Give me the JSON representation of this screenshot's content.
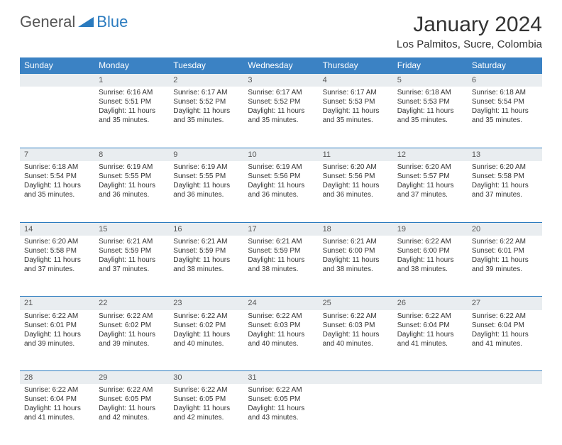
{
  "logo": {
    "text1": "General",
    "text2": "Blue",
    "color1": "#555555",
    "color2": "#2b7bbf"
  },
  "title": "January 2024",
  "location": "Los Palmitos, Sucre, Colombia",
  "weekdays": [
    "Sunday",
    "Monday",
    "Tuesday",
    "Wednesday",
    "Thursday",
    "Friday",
    "Saturday"
  ],
  "header_bg": "#3b82c4",
  "daynum_bg": "#e9edf0",
  "border_color": "#2b7bbf",
  "weeks": [
    {
      "nums": [
        "",
        "1",
        "2",
        "3",
        "4",
        "5",
        "6"
      ],
      "cells": [
        null,
        {
          "sr": "Sunrise: 6:16 AM",
          "ss": "Sunset: 5:51 PM",
          "d1": "Daylight: 11 hours",
          "d2": "and 35 minutes."
        },
        {
          "sr": "Sunrise: 6:17 AM",
          "ss": "Sunset: 5:52 PM",
          "d1": "Daylight: 11 hours",
          "d2": "and 35 minutes."
        },
        {
          "sr": "Sunrise: 6:17 AM",
          "ss": "Sunset: 5:52 PM",
          "d1": "Daylight: 11 hours",
          "d2": "and 35 minutes."
        },
        {
          "sr": "Sunrise: 6:17 AM",
          "ss": "Sunset: 5:53 PM",
          "d1": "Daylight: 11 hours",
          "d2": "and 35 minutes."
        },
        {
          "sr": "Sunrise: 6:18 AM",
          "ss": "Sunset: 5:53 PM",
          "d1": "Daylight: 11 hours",
          "d2": "and 35 minutes."
        },
        {
          "sr": "Sunrise: 6:18 AM",
          "ss": "Sunset: 5:54 PM",
          "d1": "Daylight: 11 hours",
          "d2": "and 35 minutes."
        }
      ]
    },
    {
      "nums": [
        "7",
        "8",
        "9",
        "10",
        "11",
        "12",
        "13"
      ],
      "cells": [
        {
          "sr": "Sunrise: 6:18 AM",
          "ss": "Sunset: 5:54 PM",
          "d1": "Daylight: 11 hours",
          "d2": "and 35 minutes."
        },
        {
          "sr": "Sunrise: 6:19 AM",
          "ss": "Sunset: 5:55 PM",
          "d1": "Daylight: 11 hours",
          "d2": "and 36 minutes."
        },
        {
          "sr": "Sunrise: 6:19 AM",
          "ss": "Sunset: 5:55 PM",
          "d1": "Daylight: 11 hours",
          "d2": "and 36 minutes."
        },
        {
          "sr": "Sunrise: 6:19 AM",
          "ss": "Sunset: 5:56 PM",
          "d1": "Daylight: 11 hours",
          "d2": "and 36 minutes."
        },
        {
          "sr": "Sunrise: 6:20 AM",
          "ss": "Sunset: 5:56 PM",
          "d1": "Daylight: 11 hours",
          "d2": "and 36 minutes."
        },
        {
          "sr": "Sunrise: 6:20 AM",
          "ss": "Sunset: 5:57 PM",
          "d1": "Daylight: 11 hours",
          "d2": "and 37 minutes."
        },
        {
          "sr": "Sunrise: 6:20 AM",
          "ss": "Sunset: 5:58 PM",
          "d1": "Daylight: 11 hours",
          "d2": "and 37 minutes."
        }
      ]
    },
    {
      "nums": [
        "14",
        "15",
        "16",
        "17",
        "18",
        "19",
        "20"
      ],
      "cells": [
        {
          "sr": "Sunrise: 6:20 AM",
          "ss": "Sunset: 5:58 PM",
          "d1": "Daylight: 11 hours",
          "d2": "and 37 minutes."
        },
        {
          "sr": "Sunrise: 6:21 AM",
          "ss": "Sunset: 5:59 PM",
          "d1": "Daylight: 11 hours",
          "d2": "and 37 minutes."
        },
        {
          "sr": "Sunrise: 6:21 AM",
          "ss": "Sunset: 5:59 PM",
          "d1": "Daylight: 11 hours",
          "d2": "and 38 minutes."
        },
        {
          "sr": "Sunrise: 6:21 AM",
          "ss": "Sunset: 5:59 PM",
          "d1": "Daylight: 11 hours",
          "d2": "and 38 minutes."
        },
        {
          "sr": "Sunrise: 6:21 AM",
          "ss": "Sunset: 6:00 PM",
          "d1": "Daylight: 11 hours",
          "d2": "and 38 minutes."
        },
        {
          "sr": "Sunrise: 6:22 AM",
          "ss": "Sunset: 6:00 PM",
          "d1": "Daylight: 11 hours",
          "d2": "and 38 minutes."
        },
        {
          "sr": "Sunrise: 6:22 AM",
          "ss": "Sunset: 6:01 PM",
          "d1": "Daylight: 11 hours",
          "d2": "and 39 minutes."
        }
      ]
    },
    {
      "nums": [
        "21",
        "22",
        "23",
        "24",
        "25",
        "26",
        "27"
      ],
      "cells": [
        {
          "sr": "Sunrise: 6:22 AM",
          "ss": "Sunset: 6:01 PM",
          "d1": "Daylight: 11 hours",
          "d2": "and 39 minutes."
        },
        {
          "sr": "Sunrise: 6:22 AM",
          "ss": "Sunset: 6:02 PM",
          "d1": "Daylight: 11 hours",
          "d2": "and 39 minutes."
        },
        {
          "sr": "Sunrise: 6:22 AM",
          "ss": "Sunset: 6:02 PM",
          "d1": "Daylight: 11 hours",
          "d2": "and 40 minutes."
        },
        {
          "sr": "Sunrise: 6:22 AM",
          "ss": "Sunset: 6:03 PM",
          "d1": "Daylight: 11 hours",
          "d2": "and 40 minutes."
        },
        {
          "sr": "Sunrise: 6:22 AM",
          "ss": "Sunset: 6:03 PM",
          "d1": "Daylight: 11 hours",
          "d2": "and 40 minutes."
        },
        {
          "sr": "Sunrise: 6:22 AM",
          "ss": "Sunset: 6:04 PM",
          "d1": "Daylight: 11 hours",
          "d2": "and 41 minutes."
        },
        {
          "sr": "Sunrise: 6:22 AM",
          "ss": "Sunset: 6:04 PM",
          "d1": "Daylight: 11 hours",
          "d2": "and 41 minutes."
        }
      ]
    },
    {
      "nums": [
        "28",
        "29",
        "30",
        "31",
        "",
        "",
        ""
      ],
      "cells": [
        {
          "sr": "Sunrise: 6:22 AM",
          "ss": "Sunset: 6:04 PM",
          "d1": "Daylight: 11 hours",
          "d2": "and 41 minutes."
        },
        {
          "sr": "Sunrise: 6:22 AM",
          "ss": "Sunset: 6:05 PM",
          "d1": "Daylight: 11 hours",
          "d2": "and 42 minutes."
        },
        {
          "sr": "Sunrise: 6:22 AM",
          "ss": "Sunset: 6:05 PM",
          "d1": "Daylight: 11 hours",
          "d2": "and 42 minutes."
        },
        {
          "sr": "Sunrise: 6:22 AM",
          "ss": "Sunset: 6:05 PM",
          "d1": "Daylight: 11 hours",
          "d2": "and 43 minutes."
        },
        null,
        null,
        null
      ]
    }
  ]
}
